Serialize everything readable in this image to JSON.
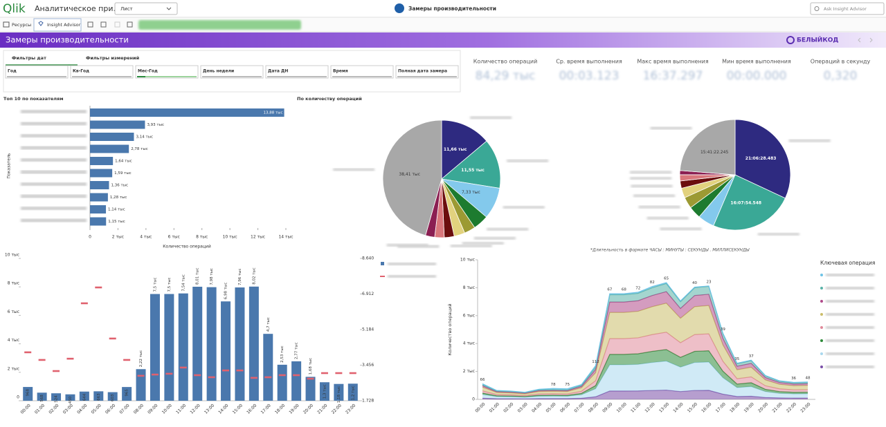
{
  "header": {
    "logo": "Qlik",
    "app_title": "Аналитическое при…",
    "sheet_select": "Лист",
    "sheet_title": "Замеры производительности",
    "search": "Ask Insight Advisor"
  },
  "toolbar": {
    "resources": "Ресурсы",
    "insight": "Insight Advisor"
  },
  "banner": {
    "title": "Замеры производительности",
    "brand": "БЕЛЫЙКОД"
  },
  "filters": {
    "tabs": [
      "Фильтры дат",
      "Фильтры измерений"
    ],
    "fields": [
      "Год",
      "Кв-Год",
      "Мес-Год",
      "День недели",
      "Дата ДН",
      "Время",
      "Полная дата замера"
    ]
  },
  "kpis": [
    {
      "label": "Количество операций",
      "value": "84,29 тыс"
    },
    {
      "label": "Ср. время выполнения",
      "value": "00:03.123"
    },
    {
      "label": "Макс время выполнения",
      "value": "16:37.297"
    },
    {
      "label": "Мин время выполнения",
      "value": "00:00.000"
    },
    {
      "label": "Операций в секунду",
      "value": "0,320"
    }
  ],
  "note": "*Длительность в формате ЧАСЫ : МИНУТЫ : СЕКУНДЫ . МИЛЛИСЕКУНДЫ",
  "chart_data": [
    {
      "type": "hbar",
      "title": "Топ 10 по показателям",
      "y_label": "Показатель",
      "x_label": "Количество операций",
      "categories": [
        null,
        null,
        null,
        null,
        null,
        null,
        null,
        null,
        null,
        null
      ],
      "values": [
        13880,
        3930,
        3140,
        2780,
        1640,
        1590,
        1360,
        1280,
        1140,
        1150
      ],
      "value_labels": [
        "13,88 тыс",
        "3,93 тыс",
        "3,14 тыс",
        "2,78 тыс",
        "1,64 тыс",
        "1,59 тыс",
        "1,36 тыс",
        "1,28 тыс",
        "1,14 тыс",
        "1,15 тыс"
      ],
      "color": "#4a78ad",
      "xlim": [
        0,
        14000
      ],
      "xticks": [
        0,
        {
          "value": 2000,
          "label": "2 тыс"
        },
        {
          "value": 4000,
          "label": "4 тыс"
        },
        {
          "value": 6000,
          "label": "6 тыс"
        },
        {
          "value": 8000,
          "label": "8 тыс"
        },
        {
          "value": 10000,
          "label": "10 тыс"
        },
        {
          "value": 12000,
          "label": "12 тыс"
        },
        {
          "value": 14000,
          "label": "14 тыс"
        }
      ]
    },
    {
      "type": "pie",
      "title": "По количеству операций",
      "categories": [
        null,
        null,
        null,
        null,
        null,
        null,
        null,
        null,
        null,
        null
      ],
      "values": [
        11660,
        11550,
        7330,
        3600,
        2600,
        2500,
        2300,
        2200,
        2140,
        38410
      ],
      "value_labels": [
        "11,66 тыс",
        "11,55 тыс",
        "7,33 тыс",
        null,
        null,
        null,
        null,
        null,
        null,
        "38,41 тыс"
      ],
      "colors": [
        "#2e2a80",
        "#3aa896",
        "#83c9ec",
        "#1d7b2f",
        "#9c9a33",
        "#e2d27e",
        "#6b0e0e",
        "#d9777c",
        "#8b1f52",
        "#a8a8a8"
      ]
    },
    {
      "type": "pie",
      "categories": [
        null,
        null,
        null,
        null,
        null,
        null,
        null,
        null,
        null,
        null
      ],
      "values": [
        21.108,
        16.132,
        3.2,
        2.4,
        2.2,
        1.9,
        1.4,
        1.2,
        0.8,
        15.69
      ],
      "value_labels": [
        "21:06:28.483",
        "16:07:54.548",
        null,
        null,
        null,
        null,
        null,
        null,
        null,
        "15:41:22.245"
      ],
      "colors": [
        "#2e2a80",
        "#3aa896",
        "#83c9ec",
        "#1d7b2f",
        "#9c9a33",
        "#e2d27e",
        "#6b0e0e",
        "#d9777c",
        "#8b1f52",
        "#a8a8a8"
      ]
    },
    {
      "type": "combo",
      "categories": [
        "00:00",
        "01:00",
        "02:00",
        "03:00",
        "04:00",
        "05:00",
        "06:00",
        "07:00",
        "08:00",
        "09:00",
        "10:00",
        "11:00",
        "12:00",
        "13:00",
        "14:00",
        "15:00",
        "16:00",
        "17:00",
        "18:00",
        "19:00",
        "20:00",
        "21:00",
        "22:00",
        "23:00"
      ],
      "series": [
        {
          "name": null,
          "kind": "bar",
          "color": "#4a78ad",
          "values": [
            968,
            568,
            524,
            450,
            644,
            663,
            603,
            965,
            2220,
            7500,
            7500,
            7540,
            8010,
            7980,
            6980,
            7960,
            8020,
            4700,
            2530,
            2770,
            1680,
            1300,
            1180,
            1200
          ],
          "value_labels": [
            "968",
            "568",
            "524",
            "450",
            "644",
            "663",
            "603",
            "965",
            "2,22 тыс",
            "7,5 тыс",
            "7,5 тыс",
            "7,54 тыс",
            "8,01 тыс",
            "7,98 тыс",
            "6,98 тыс",
            "7,96 тыс",
            "8,02 тыс",
            "4,7 тыс",
            "2,53 тыс",
            "2,77 тыс",
            "1,68 тыс",
            "1,3 тыс",
            "1,18 тыс",
            "1,2 тыс"
          ]
        },
        {
          "name": null,
          "kind": "marker",
          "axis": "y2",
          "color": "#e0616e",
          "values": [
            4.08,
            3.71,
            3.17,
            3.77,
            6.46,
            7.23,
            4.75,
            3.71,
            2.94,
            3.0,
            3.04,
            3.34,
            2.97,
            2.87,
            3.2,
            3.2,
            2.84,
            2.87,
            2.97,
            2.97,
            2.8,
            3.07,
            3.07,
            3.07
          ]
        }
      ],
      "ylim": [
        0,
        10000
      ],
      "yticks": [
        0,
        {
          "value": 2000,
          "label": "2 тыс"
        },
        {
          "value": 4000,
          "label": "4 тыс"
        },
        {
          "value": 6000,
          "label": "6 тыс"
        },
        {
          "value": 8000,
          "label": "8 тыс"
        },
        {
          "value": 10000,
          "label": "10 тыс"
        }
      ],
      "y2lim": [
        1.728,
        8.64
      ],
      "y2ticks": [
        {
          "value": 1.728,
          "label": "1.728"
        },
        {
          "value": 3.456,
          "label": "3.456"
        },
        {
          "value": 5.184,
          "label": "5.184"
        },
        {
          "value": 6.912,
          "label": "6.912"
        },
        {
          "value": 8.64,
          "label": "8.640"
        }
      ]
    },
    {
      "type": "area",
      "y_label": "Количество операций",
      "legend_title": "Ключевая операция",
      "categories": [
        "00:00",
        "01:00",
        "02:00",
        "03:00",
        "04:00",
        "05:00",
        "06:00",
        "07:00",
        "08:00",
        "09:00",
        "10:00",
        "11:00",
        "12:00",
        "13:00",
        "14:00",
        "15:00",
        "16:00",
        "17:00",
        "18:00",
        "19:00",
        "20:00",
        "21:00",
        "22:00",
        "23:00"
      ],
      "series": [
        {
          "name": null,
          "color": "#7a4fa8",
          "values": [
            84,
            48,
            45,
            38,
            54,
            56,
            54,
            80,
            184,
            600,
            600,
            608,
            640,
            664,
            560,
            640,
            648,
            376,
            204,
            222,
            134,
            104,
            94,
            96
          ]
        },
        {
          "name": null,
          "color": "#a9d8ee",
          "values": [
            263,
            150,
            140,
            120,
            170,
            175,
            170,
            250,
            575,
            1875,
            1875,
            1900,
            2000,
            2075,
            1750,
            2000,
            2025,
            1175,
            638,
            693,
            420,
            325,
            295,
            300
          ]
        },
        {
          "name": null,
          "color": "#2e8b3a",
          "values": [
            105,
            60,
            56,
            48,
            68,
            70,
            68,
            100,
            230,
            750,
            750,
            760,
            800,
            830,
            700,
            800,
            810,
            470,
            255,
            277,
            168,
            130,
            118,
            120
          ]
        },
        {
          "name": null,
          "color": "#e08a9a",
          "values": [
            158,
            90,
            84,
            72,
            102,
            105,
            102,
            150,
            345,
            1125,
            1125,
            1140,
            1200,
            1245,
            1050,
            1200,
            1215,
            705,
            383,
            416,
            252,
            195,
            177,
            180
          ]
        },
        {
          "name": null,
          "color": "#cbbd6a",
          "values": [
            263,
            150,
            140,
            120,
            170,
            175,
            170,
            250,
            575,
            1875,
            1875,
            1900,
            2000,
            2075,
            1750,
            2000,
            2025,
            1175,
            638,
            693,
            420,
            325,
            295,
            300
          ]
        },
        {
          "name": null,
          "color": "#b04a8a",
          "values": [
            105,
            60,
            56,
            48,
            68,
            70,
            68,
            100,
            230,
            750,
            750,
            760,
            800,
            830,
            700,
            800,
            810,
            470,
            255,
            277,
            168,
            130,
            118,
            120
          ]
        },
        {
          "name": null,
          "color": "#5ab3a8",
          "values": [
            72,
            42,
            39,
            34,
            48,
            49,
            48,
            70,
            161,
            525,
            525,
            532,
            560,
            581,
            490,
            560,
            567,
            329,
            179,
            194,
            118,
            91,
            83,
            84
          ]
        },
        {
          "name": null,
          "color": "#6ec3e6",
          "values": [
            66,
            40,
            35,
            30,
            45,
            78,
            75,
            60,
            112,
            67,
            68,
            72,
            82,
            65,
            50,
            40,
            23,
            39,
            35,
            37,
            30,
            30,
            36,
            48
          ],
          "value_labels": [
            "66",
            null,
            null,
            null,
            null,
            "78",
            "75",
            null,
            "112",
            "67",
            "68",
            "72",
            "82",
            "65",
            null,
            "40",
            "23",
            "39",
            "35",
            "37",
            null,
            null,
            "36",
            "48"
          ]
        }
      ],
      "ylim": [
        0,
        10000
      ],
      "yticks": [
        0,
        {
          "value": 2000,
          "label": "2 тыс"
        },
        {
          "value": 4000,
          "label": "4 тыс"
        },
        {
          "value": 6000,
          "label": "6 тыс"
        },
        {
          "value": 8000,
          "label": "8 тыс"
        },
        {
          "value": 10000,
          "label": "10 тыс"
        }
      ]
    }
  ]
}
